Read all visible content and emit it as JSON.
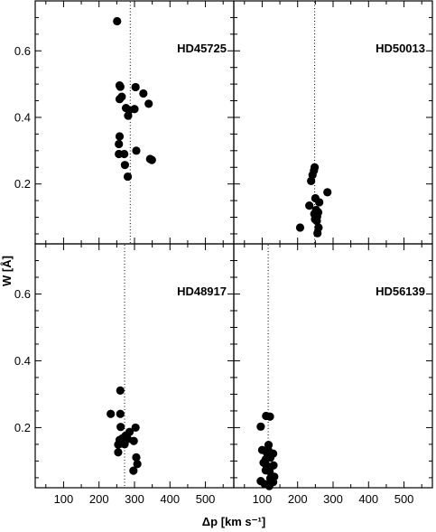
{
  "chart_data": {
    "type": "scatter",
    "layout": "2x2 panels, shared axes",
    "xlabel": "Δp [km s⁻¹]",
    "ylabel": "W [Å]",
    "xlim": [
      20,
      580
    ],
    "ylim": [
      0.02,
      0.75
    ],
    "x_ticks": [
      100,
      200,
      300,
      400,
      500
    ],
    "y_ticks": [
      0.2,
      0.4,
      0.6
    ],
    "grid": false,
    "marker_color": "#000000",
    "panels": [
      {
        "label": "HD45725",
        "vline_x": 288,
        "points": [
          {
            "x": 251,
            "y": 0.689
          },
          {
            "x": 258,
            "y": 0.496
          },
          {
            "x": 260,
            "y": 0.492
          },
          {
            "x": 303,
            "y": 0.491
          },
          {
            "x": 325,
            "y": 0.472
          },
          {
            "x": 264,
            "y": 0.462
          },
          {
            "x": 258,
            "y": 0.455
          },
          {
            "x": 340,
            "y": 0.441
          },
          {
            "x": 276,
            "y": 0.428
          },
          {
            "x": 300,
            "y": 0.425
          },
          {
            "x": 285,
            "y": 0.422
          },
          {
            "x": 282,
            "y": 0.405
          },
          {
            "x": 258,
            "y": 0.343
          },
          {
            "x": 256,
            "y": 0.32
          },
          {
            "x": 305,
            "y": 0.3
          },
          {
            "x": 256,
            "y": 0.29
          },
          {
            "x": 271,
            "y": 0.29
          },
          {
            "x": 344,
            "y": 0.275
          },
          {
            "x": 349,
            "y": 0.272
          },
          {
            "x": 273,
            "y": 0.257
          },
          {
            "x": 281,
            "y": 0.222
          }
        ]
      },
      {
        "label": "HD50013",
        "vline_x": 248,
        "points": [
          {
            "x": 248,
            "y": 0.25
          },
          {
            "x": 246,
            "y": 0.24
          },
          {
            "x": 242,
            "y": 0.227
          },
          {
            "x": 238,
            "y": 0.209
          },
          {
            "x": 284,
            "y": 0.175
          },
          {
            "x": 250,
            "y": 0.157
          },
          {
            "x": 261,
            "y": 0.145
          },
          {
            "x": 233,
            "y": 0.135
          },
          {
            "x": 252,
            "y": 0.122
          },
          {
            "x": 258,
            "y": 0.115
          },
          {
            "x": 247,
            "y": 0.11
          },
          {
            "x": 255,
            "y": 0.102
          },
          {
            "x": 249,
            "y": 0.094
          },
          {
            "x": 254,
            "y": 0.089
          },
          {
            "x": 207,
            "y": 0.069
          },
          {
            "x": 259,
            "y": 0.069
          },
          {
            "x": 256,
            "y": 0.052
          }
        ]
      },
      {
        "label": "HD48917",
        "vline_x": 272,
        "points": [
          {
            "x": 260,
            "y": 0.311
          },
          {
            "x": 233,
            "y": 0.241
          },
          {
            "x": 260,
            "y": 0.241
          },
          {
            "x": 261,
            "y": 0.202
          },
          {
            "x": 303,
            "y": 0.2
          },
          {
            "x": 286,
            "y": 0.187
          },
          {
            "x": 275,
            "y": 0.176
          },
          {
            "x": 266,
            "y": 0.168
          },
          {
            "x": 258,
            "y": 0.163
          },
          {
            "x": 281,
            "y": 0.166
          },
          {
            "x": 298,
            "y": 0.16
          },
          {
            "x": 260,
            "y": 0.152
          },
          {
            "x": 272,
            "y": 0.15
          },
          {
            "x": 254,
            "y": 0.149
          },
          {
            "x": 254,
            "y": 0.126
          },
          {
            "x": 305,
            "y": 0.111
          },
          {
            "x": 308,
            "y": 0.091
          },
          {
            "x": 297,
            "y": 0.071
          }
        ]
      },
      {
        "label": "HD56139",
        "vline_x": 117,
        "points": [
          {
            "x": 111,
            "y": 0.235
          },
          {
            "x": 122,
            "y": 0.233
          },
          {
            "x": 96,
            "y": 0.203
          },
          {
            "x": 118,
            "y": 0.148
          },
          {
            "x": 100,
            "y": 0.133
          },
          {
            "x": 118,
            "y": 0.131
          },
          {
            "x": 114,
            "y": 0.123
          },
          {
            "x": 131,
            "y": 0.122
          },
          {
            "x": 110,
            "y": 0.105
          },
          {
            "x": 123,
            "y": 0.11
          },
          {
            "x": 104,
            "y": 0.095
          },
          {
            "x": 112,
            "y": 0.087
          },
          {
            "x": 132,
            "y": 0.087
          },
          {
            "x": 110,
            "y": 0.072
          },
          {
            "x": 121,
            "y": 0.069
          },
          {
            "x": 134,
            "y": 0.053
          },
          {
            "x": 123,
            "y": 0.048
          },
          {
            "x": 96,
            "y": 0.04
          },
          {
            "x": 131,
            "y": 0.037
          },
          {
            "x": 107,
            "y": 0.031
          },
          {
            "x": 120,
            "y": 0.025
          }
        ]
      }
    ]
  }
}
